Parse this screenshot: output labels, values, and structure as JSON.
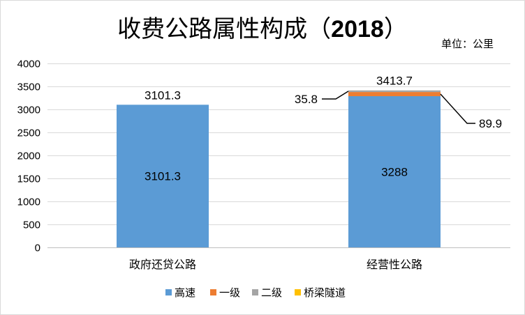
{
  "chart_data": {
    "type": "bar",
    "stacked": true,
    "title_main": "收费公路属性构成（",
    "title_year": "2018",
    "title_end": "）",
    "unit_label": "单位：公里",
    "categories": [
      "政府还贷公路",
      "经营性公路"
    ],
    "series": [
      {
        "name": "高速",
        "values": [
          3101.3,
          3288
        ],
        "color": "#5b9bd5"
      },
      {
        "name": "一级",
        "values": [
          0,
          89.9
        ],
        "color": "#ed7d31"
      },
      {
        "name": "二级",
        "values": [
          0,
          35.8
        ],
        "color": "#a5a5a5"
      },
      {
        "name": "桥梁隧道",
        "values": [
          0,
          0
        ],
        "color": "#ffc000"
      }
    ],
    "totals": [
      "3101.3",
      "3413.7"
    ],
    "inner_labels": [
      "3101.3",
      "3288"
    ],
    "callouts": [
      {
        "text": "35.8",
        "series": "二级",
        "category": "经营性公路"
      },
      {
        "text": "89.9",
        "series": "一级",
        "category": "经营性公路"
      }
    ],
    "ylim": [
      0,
      4000
    ],
    "yticks": [
      0,
      500,
      1000,
      1500,
      2000,
      2500,
      3000,
      3500,
      4000
    ],
    "grid": true,
    "legend_position": "bottom"
  }
}
